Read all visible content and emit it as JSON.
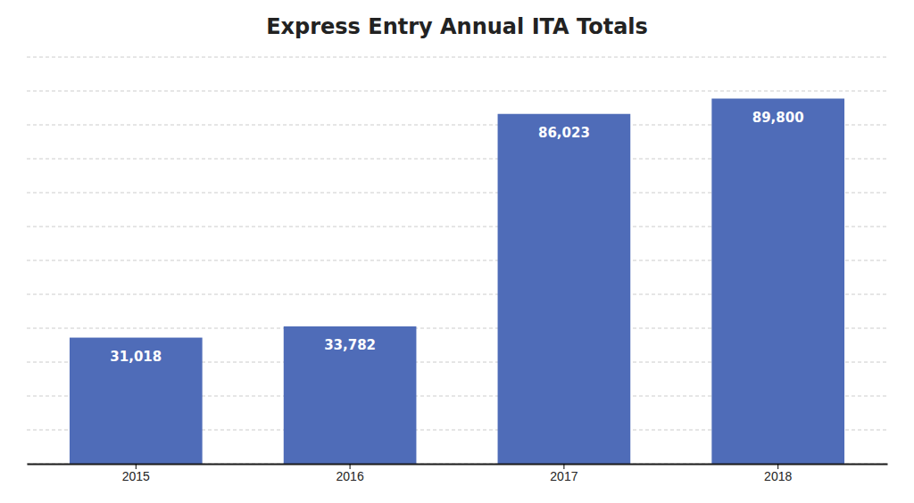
{
  "chart_data": {
    "type": "bar",
    "title": "Express Entry Annual ITA Totals",
    "categories": [
      "2015",
      "2016",
      "2017",
      "2018"
    ],
    "values": [
      31018,
      33782,
      86023,
      89800
    ],
    "value_labels": [
      "31,018",
      "33,782",
      "86,023",
      "89,800"
    ],
    "data_labels": true,
    "color": "#4F6CB8",
    "ylim": [
      0,
      100000
    ],
    "yticks": [
      0,
      8333.333333333334,
      16666.666666666668,
      25000,
      33333.333333333336,
      41666.66666666667,
      50000,
      58333.33333333333,
      66666.66666666667,
      75000,
      83333.33333333333,
      91666.66666666667,
      100000
    ],
    "grid": true,
    "tick_labels": "x"
  }
}
